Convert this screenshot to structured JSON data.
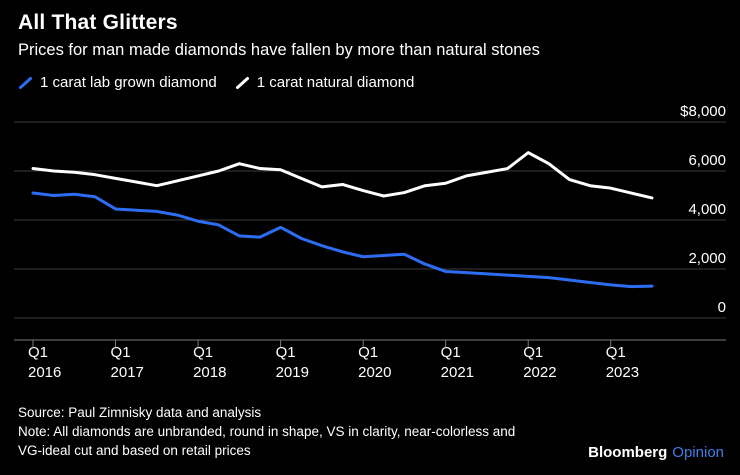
{
  "header": {
    "title": "All That Glitters",
    "subtitle": "Prices for man made diamonds have fallen by more than natural stones"
  },
  "legend": [
    {
      "label": "1 carat lab grown diamond",
      "color": "#2d6df3"
    },
    {
      "label": "1 carat natural diamond",
      "color": "#ffffff"
    }
  ],
  "colors": {
    "background": "#000000",
    "grid": "#3d3d3d",
    "axis": "#7a7a7a",
    "label": "#ffffff",
    "brand_opinion_blue": "#3f7ee8"
  },
  "chart_data": {
    "type": "line",
    "title": "All That Glitters",
    "subtitle": "Prices for man made diamonds have fallen by more than natural stones",
    "xlabel": "",
    "ylabel": "",
    "ylim": [
      0,
      8000
    ],
    "grid": "horizontal",
    "legend_position": "top-left",
    "y_axis_position": "right",
    "x": [
      "2016 Q1",
      "2016 Q2",
      "2016 Q3",
      "2016 Q4",
      "2017 Q1",
      "2017 Q2",
      "2017 Q3",
      "2017 Q4",
      "2018 Q1",
      "2018 Q2",
      "2018 Q3",
      "2018 Q4",
      "2019 Q1",
      "2019 Q2",
      "2019 Q3",
      "2019 Q4",
      "2020 Q1",
      "2020 Q2",
      "2020 Q3",
      "2020 Q4",
      "2021 Q1",
      "2021 Q2",
      "2021 Q3",
      "2021 Q4",
      "2022 Q1",
      "2022 Q2",
      "2022 Q3",
      "2022 Q4",
      "2023 Q1",
      "2023 Q2",
      "2023 Q3"
    ],
    "series": [
      {
        "name": "1 carat lab grown diamond",
        "color": "#2d6df3",
        "values": [
          5100,
          5000,
          5050,
          4950,
          4450,
          4400,
          4350,
          4200,
          3950,
          3800,
          3350,
          3300,
          3700,
          3250,
          2950,
          2700,
          2500,
          2550,
          2600,
          2200,
          1900,
          1850,
          1800,
          1750,
          1700,
          1650,
          1550,
          1450,
          1350,
          1280,
          1300
        ]
      },
      {
        "name": "1 carat natural diamond",
        "color": "#ffffff",
        "values": [
          6100,
          6000,
          5950,
          5850,
          5700,
          5550,
          5400,
          5600,
          5800,
          6000,
          6300,
          6100,
          6050,
          5700,
          5350,
          5450,
          5200,
          4980,
          5120,
          5400,
          5500,
          5800,
          5950,
          6100,
          6750,
          6300,
          5650,
          5400,
          5300,
          5100,
          4900
        ]
      }
    ],
    "yticks": [
      {
        "value": 0,
        "label": "0"
      },
      {
        "value": 2000,
        "label": "2,000"
      },
      {
        "value": 4000,
        "label": "4,000"
      },
      {
        "value": 6000,
        "label": "6,000"
      },
      {
        "value": 8000,
        "label": "$8,000"
      }
    ],
    "xticks": [
      {
        "index": 0,
        "line1": "Q1",
        "line2": "2016"
      },
      {
        "index": 4,
        "line1": "Q1",
        "line2": "2017"
      },
      {
        "index": 8,
        "line1": "Q1",
        "line2": "2018"
      },
      {
        "index": 12,
        "line1": "Q1",
        "line2": "2019"
      },
      {
        "index": 16,
        "line1": "Q1",
        "line2": "2020"
      },
      {
        "index": 20,
        "line1": "Q1",
        "line2": "2021"
      },
      {
        "index": 24,
        "line1": "Q1",
        "line2": "2022"
      },
      {
        "index": 28,
        "line1": "Q1",
        "line2": "2023"
      }
    ]
  },
  "footer": {
    "source": "Source: Paul Zimnisky data and analysis",
    "note_line1": "Note: All diamonds are unbranded, round in shape, VS in clarity, near-colorless and",
    "note_line2": "VG-ideal cut and based on retail prices",
    "brand": {
      "bloomberg": "Bloomberg",
      "opinion": "Opinion"
    }
  }
}
